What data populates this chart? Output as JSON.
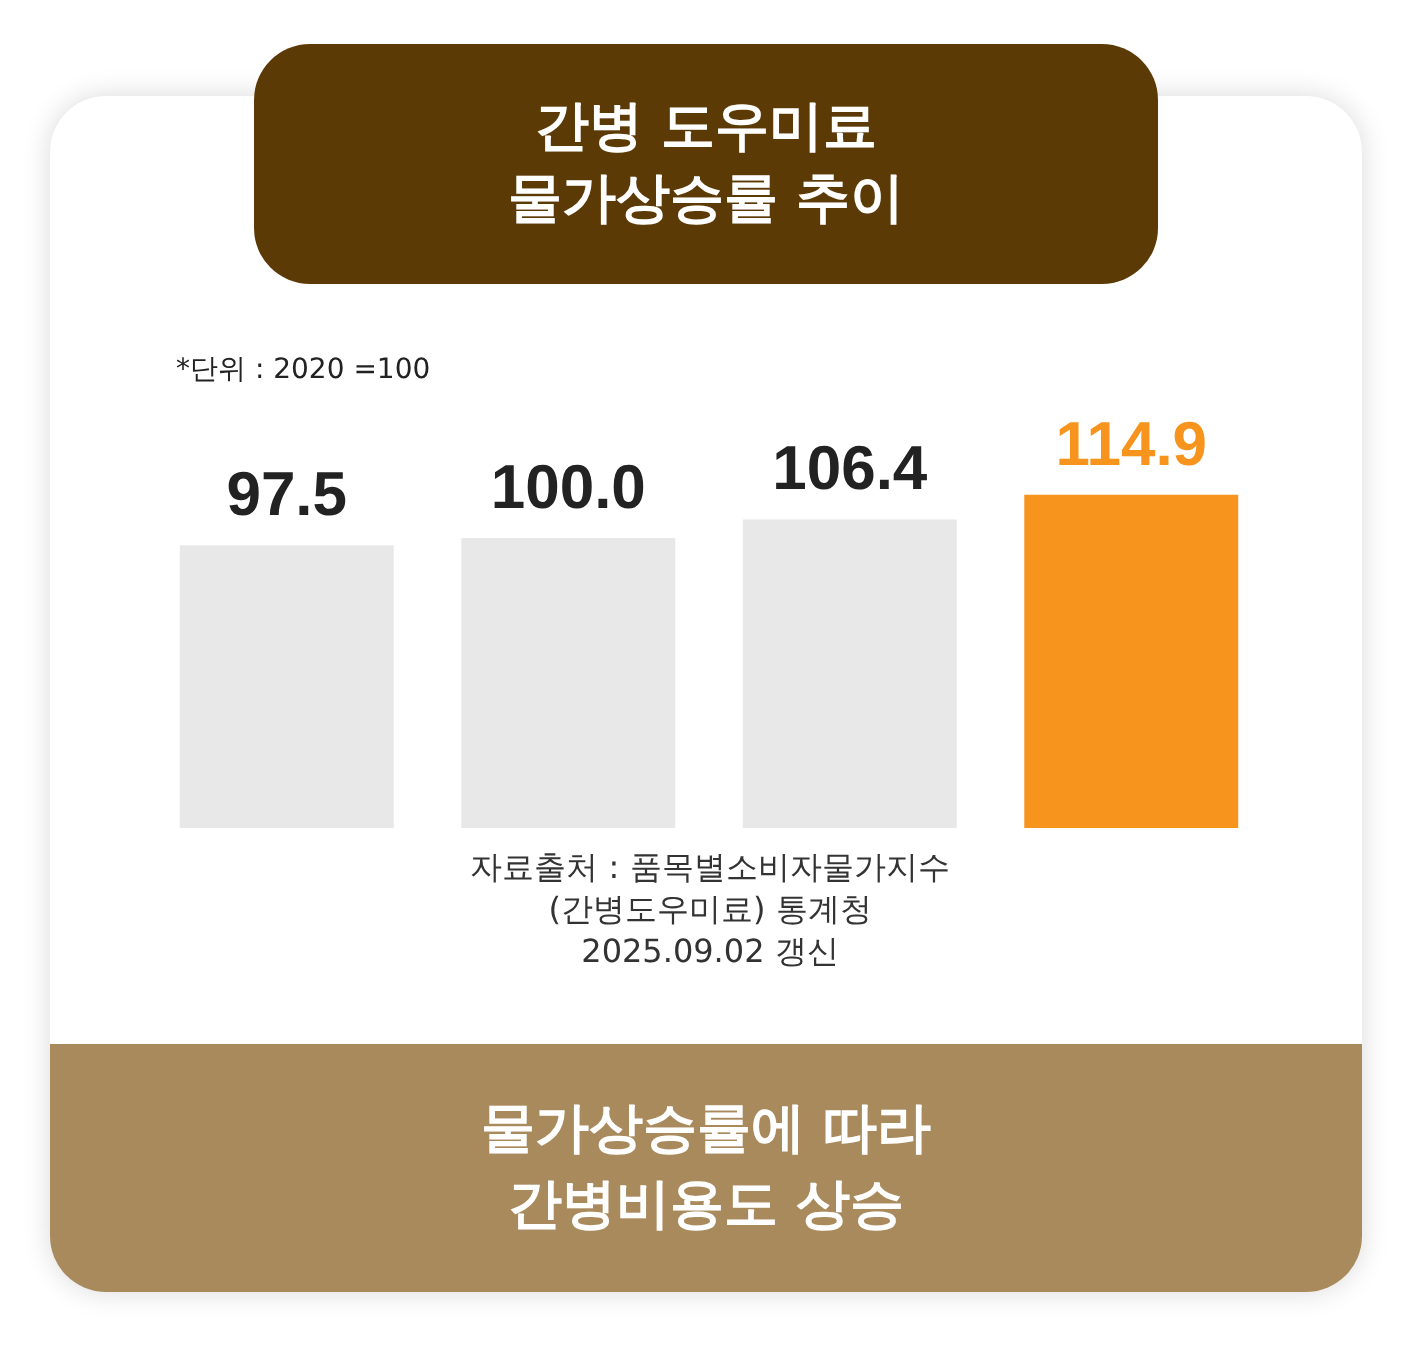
{
  "chart_data": {
    "type": "bar",
    "title": "간병 도우미료\n물가상승률 추이",
    "categories": [
      null,
      null,
      null,
      null
    ],
    "values": [
      97.5,
      100,
      106.4,
      114.9
    ],
    "value_labels": [
      "97.5",
      "100.0",
      "106.4",
      "114.9"
    ],
    "colors": [
      "#e8e8e8",
      "#e8e8e8",
      "#e8e8e8",
      "#f7941d"
    ],
    "grid": false,
    "annotations": [
      "*단위 : 2020 =100",
      "자료출처 : 품목별소비자물가지수\n(간병도우미료) 통계청\n2025.09.02 갱신",
      "물가상승률에 따라\n간병비용도 상승"
    ]
  }
}
